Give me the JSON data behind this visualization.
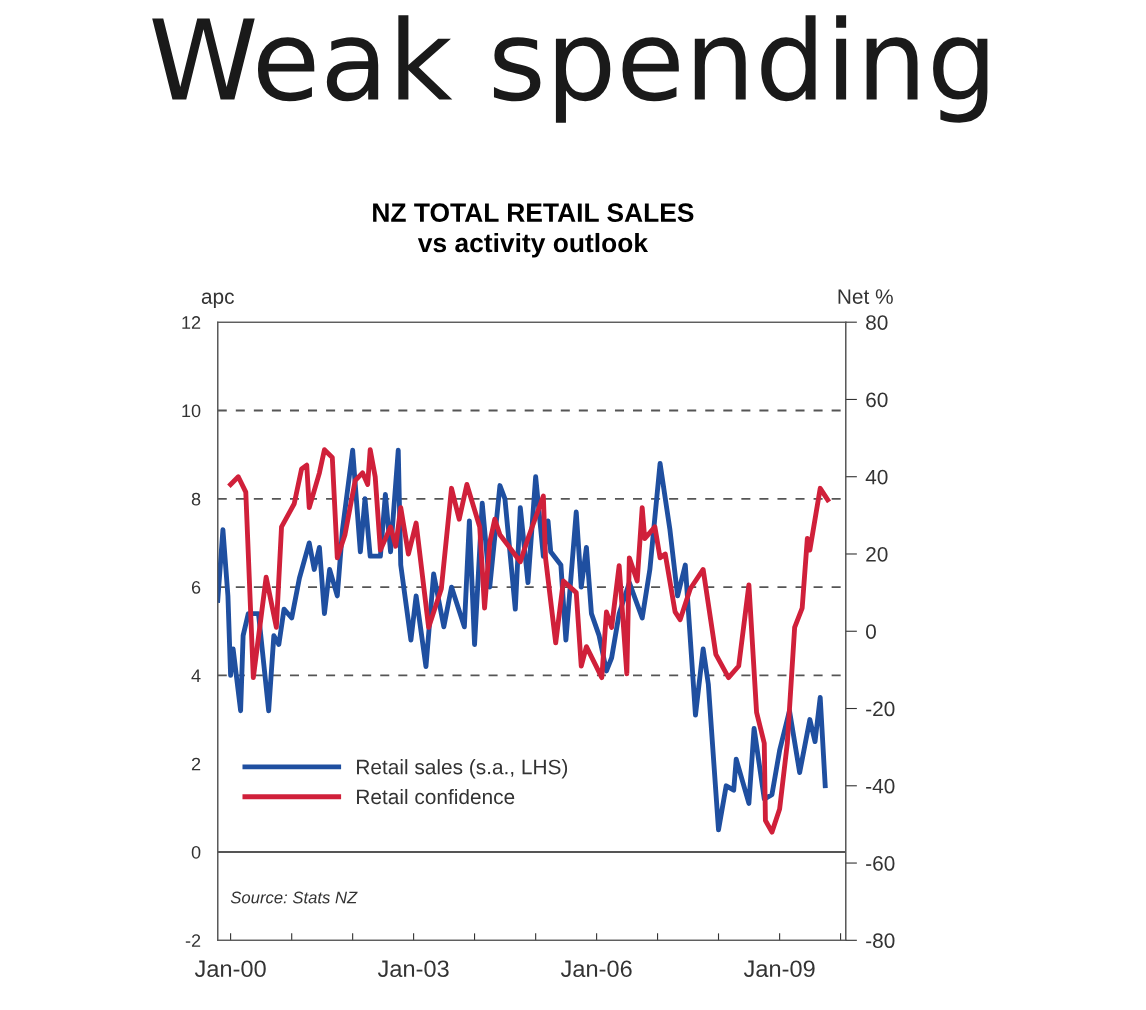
{
  "chart_data": {
    "type": "line",
    "title": "Weak spending",
    "subtitle": "NZ TOTAL RETAIL SALES\nvs activity outlook",
    "ylabel": "apc",
    "y2label": "Net %",
    "annotations": [
      "Source: Stats NZ"
    ],
    "xlim": [
      "1999-10-16",
      "2010-02-01"
    ],
    "xticks": [
      {
        "value": "2000-01-01",
        "label": "Jan-00"
      },
      {
        "value": "2001-01-01",
        "label": null
      },
      {
        "value": "2002-01-01",
        "label": null
      },
      {
        "value": "2003-01-01",
        "label": "Jan-03"
      },
      {
        "value": "2004-01-01",
        "label": null
      },
      {
        "value": "2005-01-01",
        "label": null
      },
      {
        "value": "2006-01-01",
        "label": "Jan-06"
      },
      {
        "value": "2007-01-01",
        "label": null
      },
      {
        "value": "2008-01-01",
        "label": null
      },
      {
        "value": "2009-01-01",
        "label": "Jan-09"
      },
      {
        "value": "2010-01-01",
        "label": null
      }
    ],
    "ylim": [
      -2,
      12
    ],
    "yticks": [
      -2,
      0,
      2,
      4,
      6,
      8,
      10,
      12
    ],
    "y2lim": [
      -80,
      80
    ],
    "y2ticks": [
      -80,
      -60,
      -40,
      -20,
      0,
      20,
      40,
      60,
      80
    ],
    "ref_lines": [
      {
        "axis": "y",
        "value": 10,
        "line_style": "dashed",
        "color": "#555555"
      },
      {
        "axis": "y",
        "value": 8,
        "line_style": "dashed",
        "color": "#555555"
      },
      {
        "axis": "y",
        "value": 6,
        "line_style": "dashed",
        "color": "#555555"
      },
      {
        "axis": "y",
        "value": 4,
        "line_style": "dashed",
        "color": "#555555"
      },
      {
        "axis": "y",
        "value": 0,
        "line_style": "solid",
        "color": "#555555"
      }
    ],
    "legend": "bottom left",
    "grid": false,
    "marker": "none",
    "line_style": "solid",
    "series": [
      {
        "name": "Retail sales (s.a., LHS)",
        "color": "#1f4fa0",
        "x": [
          "1999-10-16",
          "1999-11-16",
          "1999-12-16",
          "2000-01-01",
          "2000-01-16",
          "2000-03-01",
          "2000-03-16",
          "2000-04-16",
          "2000-06-16",
          "2000-08-16",
          "2000-09-16",
          "2000-10-16",
          "2000-11-16",
          "2001-01-01",
          "2001-02-16",
          "2001-04-16",
          "2001-05-16",
          "2001-06-16",
          "2001-07-16",
          "2001-08-16",
          "2001-10-01",
          "2001-11-01",
          "2002-01-01",
          "2002-02-16",
          "2002-03-16",
          "2002-04-16",
          "2002-06-16",
          "2002-07-16",
          "2002-08-16",
          "2002-10-01",
          "2002-10-16",
          "2002-12-16",
          "2003-01-16",
          "2003-03-16",
          "2003-05-01",
          "2003-07-01",
          "2003-08-16",
          "2003-11-01",
          "2003-12-01",
          "2004-01-01",
          "2004-02-16",
          "2004-04-01",
          "2004-06-01",
          "2004-07-01",
          "2004-09-01",
          "2004-10-01",
          "2004-11-16",
          "2005-01-01",
          "2005-02-16",
          "2005-03-16",
          "2005-04-01",
          "2005-06-01",
          "2005-07-01",
          "2005-09-01",
          "2005-10-01",
          "2005-11-01",
          "2005-12-01",
          "2006-01-16",
          "2006-03-01",
          "2006-04-01",
          "2006-05-16",
          "2006-07-16",
          "2006-10-01",
          "2006-11-16",
          "2007-01-16",
          "2007-03-16",
          "2007-05-01",
          "2007-06-16",
          "2007-08-16",
          "2007-10-01",
          "2007-11-01",
          "2008-01-01",
          "2008-02-16",
          "2008-04-01",
          "2008-04-16",
          "2008-07-01",
          "2008-08-01",
          "2008-10-01",
          "2008-11-16",
          "2009-01-01",
          "2009-03-01",
          "2009-05-01",
          "2009-07-01",
          "2009-08-01",
          "2009-09-01",
          "2009-10-01"
        ],
        "values": [
          5.7,
          7.3,
          5.8,
          4.0,
          4.6,
          3.2,
          4.9,
          5.4,
          5.4,
          3.2,
          4.9,
          4.7,
          5.5,
          5.3,
          6.2,
          7.0,
          6.4,
          6.9,
          5.4,
          6.4,
          5.8,
          7.3,
          9.1,
          6.8,
          8.0,
          6.7,
          6.7,
          8.1,
          6.8,
          9.1,
          6.5,
          4.8,
          5.8,
          4.2,
          6.3,
          5.1,
          6.0,
          5.1,
          7.5,
          4.7,
          7.9,
          6.0,
          8.3,
          8.0,
          5.5,
          7.8,
          6.1,
          8.5,
          6.7,
          7.5,
          6.8,
          6.5,
          4.8,
          7.7,
          6.0,
          6.9,
          5.4,
          4.9,
          4.1,
          4.4,
          5.4,
          6.1,
          5.3,
          6.4,
          8.8,
          7.3,
          5.8,
          6.5,
          3.1,
          4.6,
          3.8,
          0.5,
          1.5,
          1.4,
          2.1,
          1.1,
          2.8,
          1.2,
          1.3,
          2.3,
          3.2,
          1.8,
          3.0,
          2.5,
          3.5,
          1.5
        ]
      },
      {
        "name": "Retail confidence",
        "color": "#d0203a",
        "axis": "y2",
        "x": [
          "2000-01-01",
          "2000-02-16",
          "2000-04-01",
          "2000-05-16",
          "2000-08-01",
          "2000-10-01",
          "2000-11-01",
          "2001-01-16",
          "2001-03-01",
          "2001-04-01",
          "2001-04-16",
          "2001-06-16",
          "2001-07-16",
          "2001-09-01",
          "2001-10-01",
          "2001-11-16",
          "2002-01-16",
          "2002-03-01",
          "2002-04-01",
          "2002-04-16",
          "2002-05-16",
          "2002-06-16",
          "2002-08-16",
          "2002-09-16",
          "2002-10-16",
          "2002-12-01",
          "2003-01-16",
          "2003-04-01",
          "2003-06-16",
          "2003-08-16",
          "2003-10-01",
          "2003-11-16",
          "2004-02-01",
          "2004-03-01",
          "2004-04-01",
          "2004-05-01",
          "2004-06-01",
          "2004-10-01",
          "2004-11-16",
          "2005-02-16",
          "2005-03-01",
          "2005-05-01",
          "2005-06-16",
          "2005-09-01",
          "2005-10-01",
          "2005-11-01",
          "2006-02-01",
          "2006-03-01",
          "2006-04-01",
          "2006-05-16",
          "2006-07-01",
          "2006-07-16",
          "2006-09-01",
          "2006-10-01",
          "2006-10-16",
          "2006-12-16",
          "2007-01-16",
          "2007-02-16",
          "2007-04-16",
          "2007-05-16",
          "2007-07-16",
          "2007-10-01",
          "2007-12-16",
          "2008-03-01",
          "2008-05-01",
          "2008-07-01",
          "2008-08-16",
          "2008-10-01",
          "2008-10-08",
          "2008-11-16",
          "2009-01-01",
          "2009-02-16",
          "2009-04-01",
          "2009-05-16",
          "2009-06-16",
          "2009-07-01",
          "2009-09-01",
          "2009-10-16"
        ],
        "values": [
          38,
          40,
          36,
          -12,
          14,
          1,
          27,
          33,
          42,
          43,
          32,
          41,
          47,
          45,
          19,
          25,
          39,
          41,
          38,
          47,
          40,
          21,
          27,
          22,
          32,
          20,
          28,
          1,
          11,
          37,
          29,
          38,
          27,
          6,
          23,
          29,
          25,
          18,
          24,
          35,
          19,
          -3,
          13,
          10,
          -9,
          -4,
          -12,
          5,
          1,
          17,
          -11,
          19,
          13,
          32,
          24,
          27,
          19,
          20,
          5,
          3,
          11,
          16,
          -6,
          -12,
          -9,
          12,
          -21,
          -29,
          -49,
          -52,
          -46,
          -29,
          1,
          6,
          24,
          21,
          37,
          34
        ]
      }
    ]
  }
}
